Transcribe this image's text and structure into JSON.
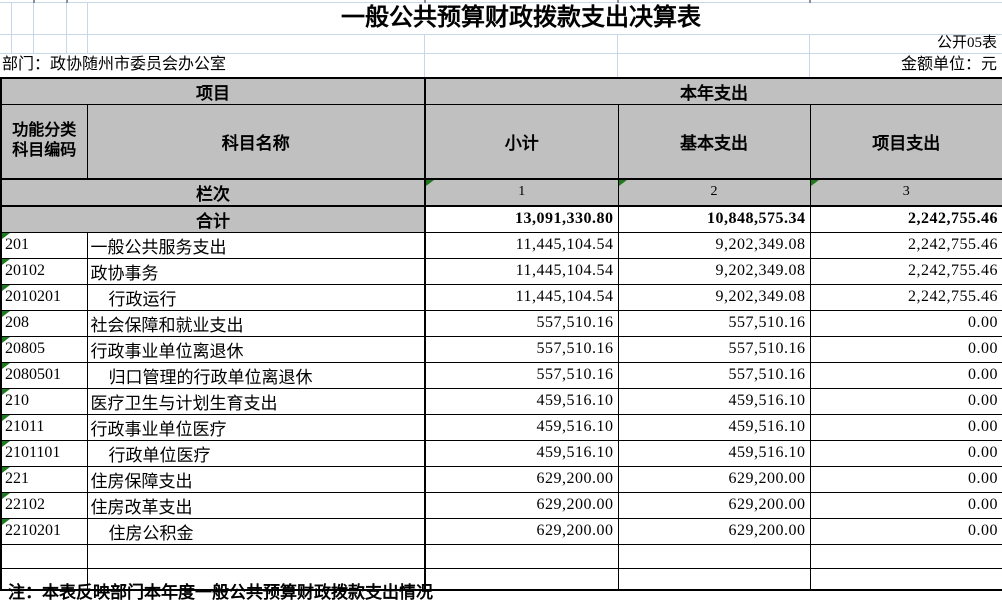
{
  "page": {
    "title": "一般公共预算财政拨款支出决算表",
    "sheet_label": "公开05表",
    "department": "部门：政协随州市委员会办公室",
    "unit_label": "金额单位：元",
    "note": "注：本表反映部门本年度一般公共预算财政拨款支出情况"
  },
  "table": {
    "header": {
      "project_group": "项目",
      "current_year_group": "本年支出",
      "code": "功能分类科目编码",
      "subject_name": "科目名称",
      "subtotal": "小计",
      "basic_expenditure": "基本支出",
      "project_expenditure": "项目支出",
      "column_index_label": "栏次",
      "column_numbers": [
        "1",
        "2",
        "3"
      ]
    },
    "total_row": {
      "label": "合计",
      "subtotal": "13,091,330.80",
      "basic": "10,848,575.34",
      "project": "2,242,755.46"
    },
    "rows": [
      {
        "code": "201",
        "name": "一般公共服务支出",
        "indent": false,
        "subtotal": "11,445,104.54",
        "basic": "9,202,349.08",
        "project": "2,242,755.46"
      },
      {
        "code": "20102",
        "name": "政协事务",
        "indent": false,
        "subtotal": "11,445,104.54",
        "basic": "9,202,349.08",
        "project": "2,242,755.46"
      },
      {
        "code": "2010201",
        "name": "行政运行",
        "indent": true,
        "subtotal": "11,445,104.54",
        "basic": "9,202,349.08",
        "project": "2,242,755.46"
      },
      {
        "code": "208",
        "name": "社会保障和就业支出",
        "indent": false,
        "subtotal": "557,510.16",
        "basic": "557,510.16",
        "project": "0.00"
      },
      {
        "code": "20805",
        "name": "行政事业单位离退休",
        "indent": false,
        "subtotal": "557,510.16",
        "basic": "557,510.16",
        "project": "0.00"
      },
      {
        "code": "2080501",
        "name": "归口管理的行政单位离退休",
        "indent": true,
        "subtotal": "557,510.16",
        "basic": "557,510.16",
        "project": "0.00"
      },
      {
        "code": "210",
        "name": "医疗卫生与计划生育支出",
        "indent": false,
        "subtotal": "459,516.10",
        "basic": "459,516.10",
        "project": "0.00"
      },
      {
        "code": "21011",
        "name": "行政事业单位医疗",
        "indent": false,
        "subtotal": "459,516.10",
        "basic": "459,516.10",
        "project": "0.00"
      },
      {
        "code": "2101101",
        "name": "行政单位医疗",
        "indent": true,
        "subtotal": "459,516.10",
        "basic": "459,516.10",
        "project": "0.00"
      },
      {
        "code": "221",
        "name": "住房保障支出",
        "indent": false,
        "subtotal": "629,200.00",
        "basic": "629,200.00",
        "project": "0.00"
      },
      {
        "code": "22102",
        "name": "住房改革支出",
        "indent": false,
        "subtotal": "629,200.00",
        "basic": "629,200.00",
        "project": "0.00"
      },
      {
        "code": "2210201",
        "name": "住房公积金",
        "indent": true,
        "subtotal": "629,200.00",
        "basic": "629,200.00",
        "project": "0.00"
      }
    ]
  },
  "colors": {
    "header_bg": "#c0c0c0",
    "grid_line_blue": "#c9d6e8",
    "table_border": "#000000",
    "triangle_indicator_green": "#1f7a1f"
  },
  "icons": {
    "green_triangle_indicator": "css corner triangle (Excel text-format cell marker)"
  }
}
